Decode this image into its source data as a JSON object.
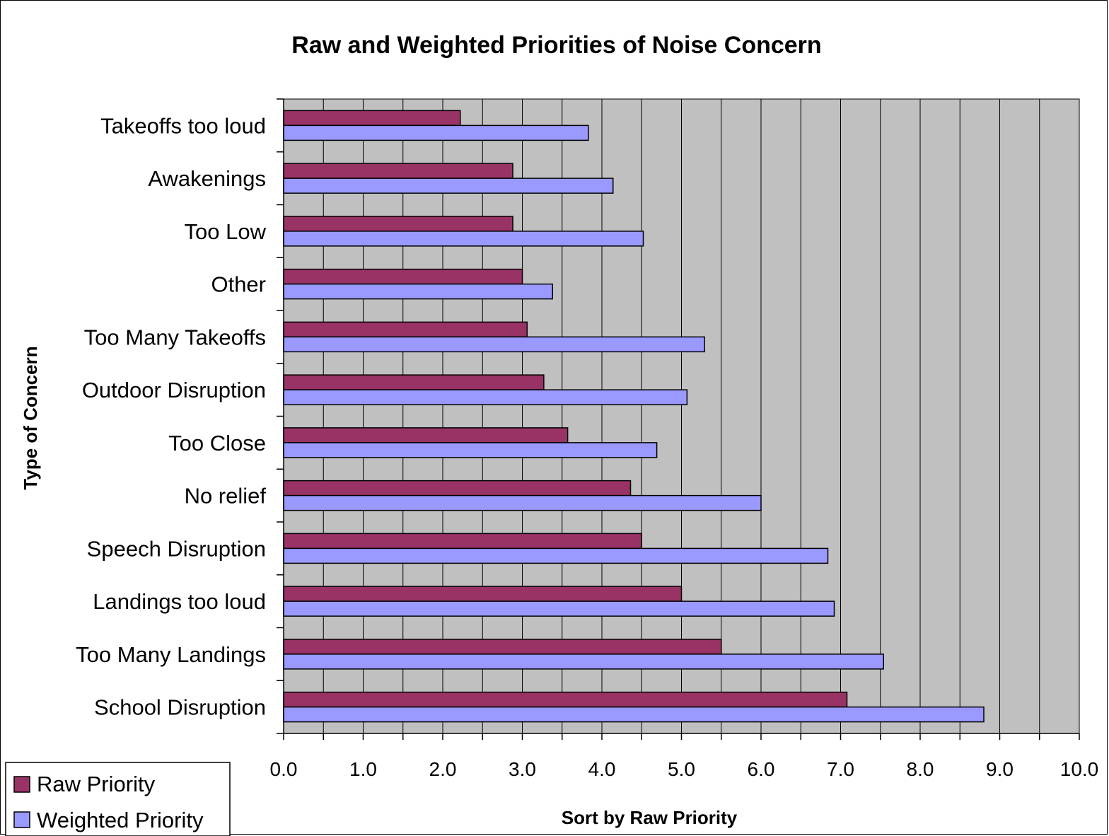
{
  "chart_data": {
    "type": "bar",
    "orientation": "horizontal",
    "title": "Raw and Weighted Priorities of Noise Concern",
    "xlabel": "Sort by Raw Priority",
    "ylabel": "Type of Concern",
    "xlim": [
      0,
      10
    ],
    "x_ticks": [
      "0.0",
      "1.0",
      "2.0",
      "3.0",
      "4.0",
      "5.0",
      "6.0",
      "7.0",
      "8.0",
      "9.0",
      "10.0"
    ],
    "grid": "vertical lines",
    "legend_position": "bottom-left",
    "categories": [
      "Takeoffs too loud",
      "Awakenings",
      "Too Low",
      "Other",
      "Too Many Takeoffs",
      "Outdoor Disruption",
      "Too Close",
      "No relief",
      "Speech Disruption",
      "Landings too loud",
      "Too Many Landings",
      "School Disruption"
    ],
    "series": [
      {
        "name": "Raw Priority",
        "color": "#993366",
        "values": [
          2.22,
          2.88,
          2.88,
          3.0,
          3.06,
          3.27,
          3.57,
          4.36,
          4.5,
          5.0,
          5.5,
          7.08
        ]
      },
      {
        "name": "Weighted Priority",
        "color": "#9999ff",
        "values": [
          3.83,
          4.14,
          4.52,
          3.38,
          5.29,
          5.07,
          4.69,
          6.0,
          6.84,
          6.92,
          7.54,
          8.8
        ]
      }
    ],
    "plot_background": "#c0c0c0"
  }
}
